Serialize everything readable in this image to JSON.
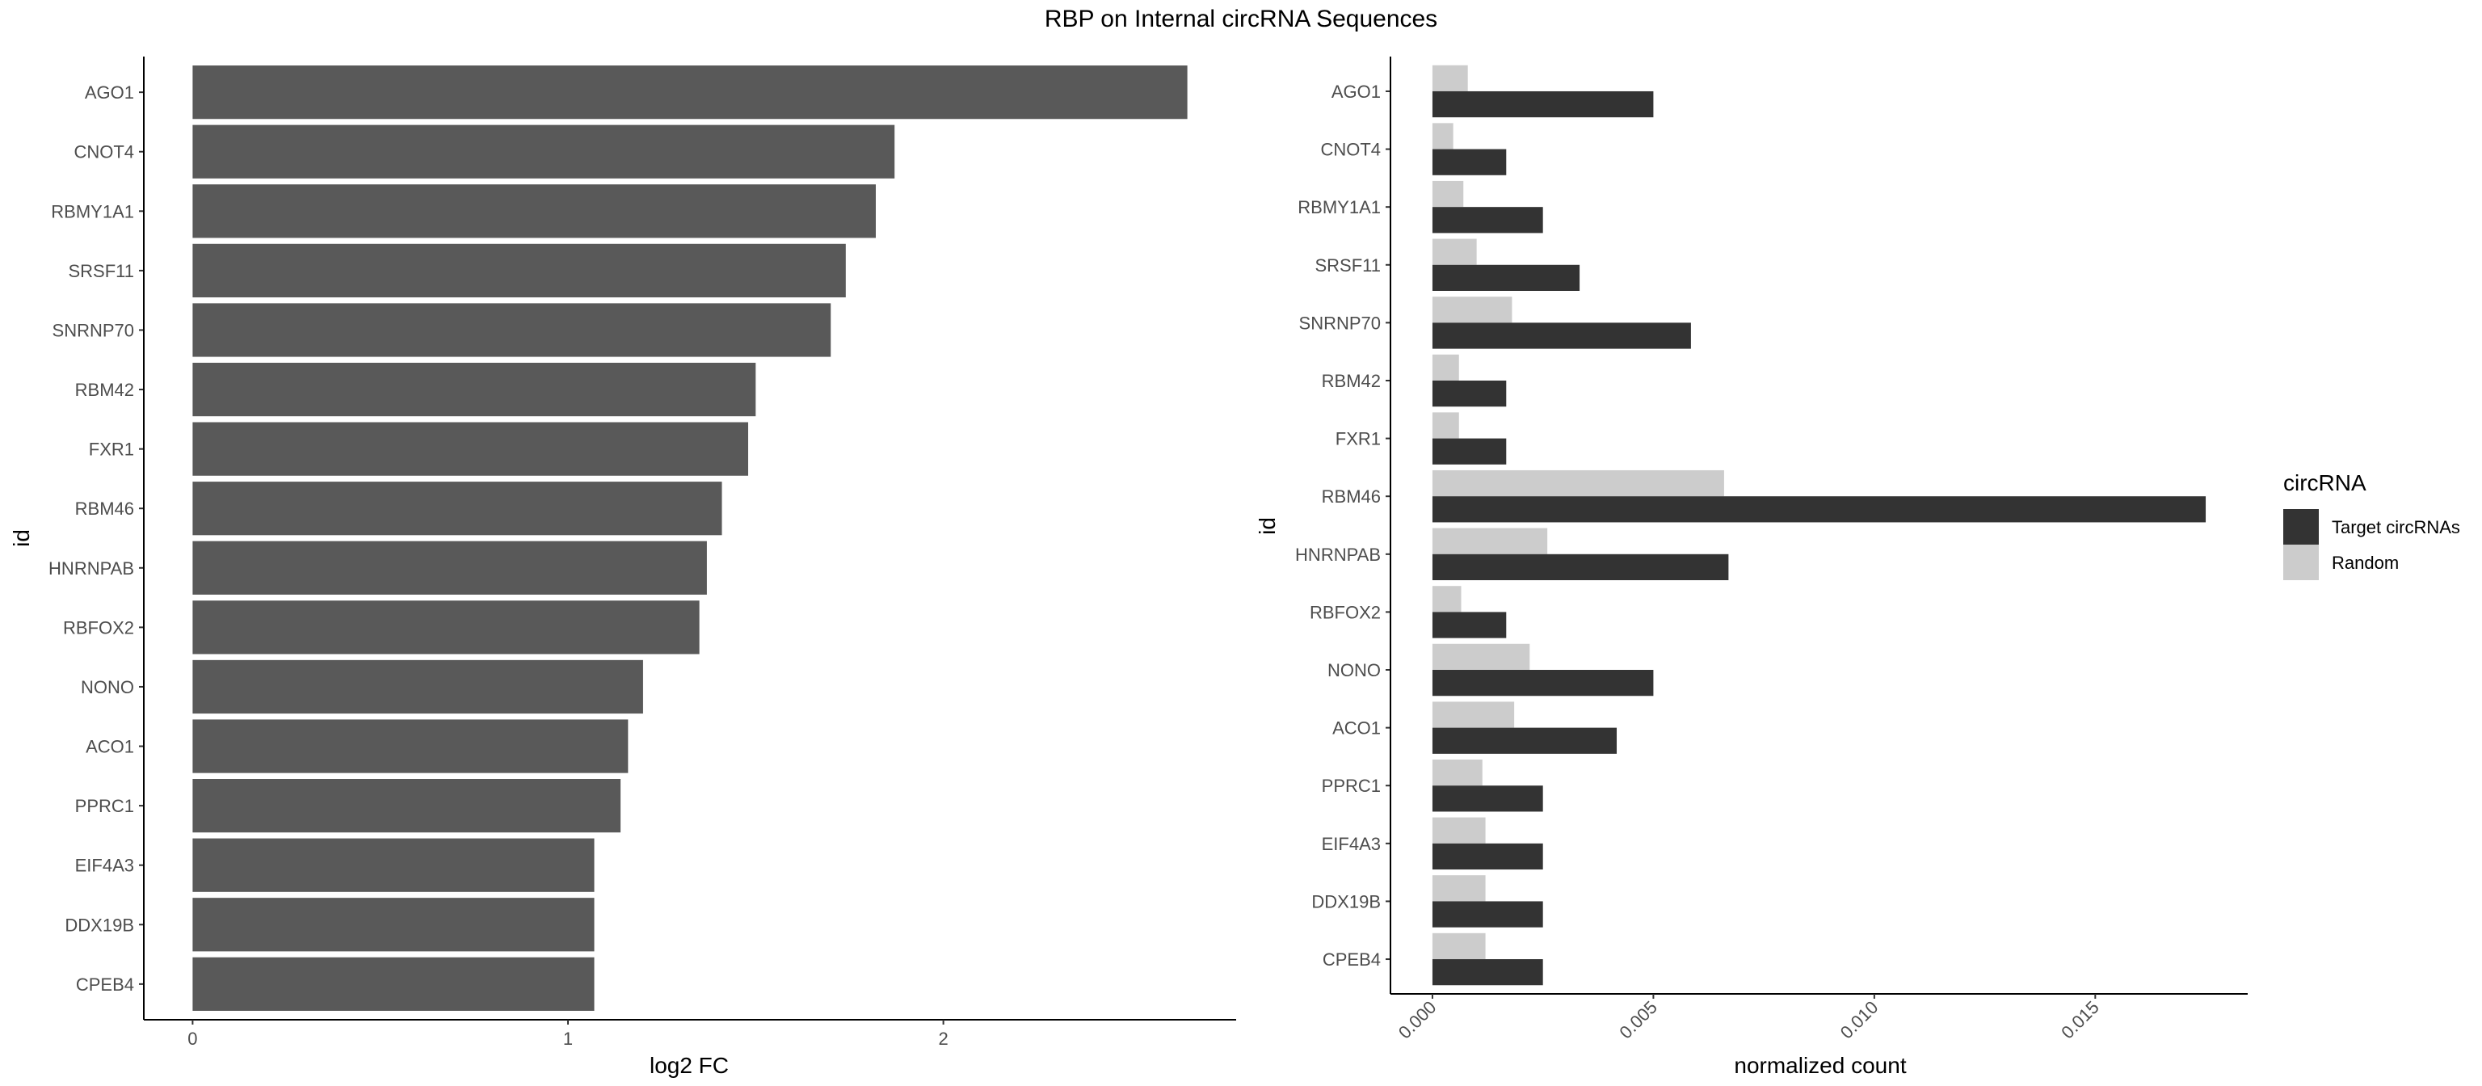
{
  "chart_data": [
    {
      "type": "bar",
      "orientation": "horizontal",
      "title": "RBP on Internal circRNA Sequences",
      "xlabel": "log2 FC",
      "ylabel": "id",
      "xlim": [
        -0.13,
        2.78
      ],
      "xticks": [
        0,
        1,
        2
      ],
      "grid": false,
      "categories": [
        "AGO1",
        "CNOT4",
        "RBMY1A1",
        "SRSF11",
        "SNRNP70",
        "RBM42",
        "FXR1",
        "RBM46",
        "HNRNPAB",
        "RBFOX2",
        "NONO",
        "ACO1",
        "PPRC1",
        "EIF4A3",
        "DDX19B",
        "CPEB4"
      ],
      "values": [
        2.65,
        1.87,
        1.82,
        1.74,
        1.7,
        1.5,
        1.48,
        1.41,
        1.37,
        1.35,
        1.2,
        1.16,
        1.14,
        1.07,
        1.07,
        1.07
      ],
      "colors": {
        "bar": "#595959"
      }
    },
    {
      "type": "bar",
      "orientation": "horizontal",
      "position": "dodge",
      "xlabel": "normalized count",
      "ylabel": "id",
      "xlim": [
        -0.00095,
        0.01845
      ],
      "xticks": [
        0.0,
        0.005,
        0.01,
        0.015
      ],
      "xtick_labels": [
        "0.000",
        "0.005",
        "0.010",
        "0.015"
      ],
      "grid": false,
      "categories": [
        "AGO1",
        "CNOT4",
        "RBMY1A1",
        "SRSF11",
        "SNRNP70",
        "RBM42",
        "FXR1",
        "RBM46",
        "HNRNPAB",
        "RBFOX2",
        "NONO",
        "ACO1",
        "PPRC1",
        "EIF4A3",
        "DDX19B",
        "CPEB4"
      ],
      "series": [
        {
          "name": "Target circRNAs",
          "color": "#333333",
          "values": [
            0.005,
            0.00167,
            0.0025,
            0.00333,
            0.00585,
            0.00167,
            0.00167,
            0.0175,
            0.0067,
            0.00167,
            0.005,
            0.00417,
            0.0025,
            0.0025,
            0.0025,
            0.0025
          ]
        },
        {
          "name": "Random",
          "color": "#cccccc",
          "values": [
            0.0008,
            0.00047,
            0.0007,
            0.001,
            0.0018,
            0.0006,
            0.0006,
            0.0066,
            0.0026,
            0.00065,
            0.0022,
            0.00185,
            0.00113,
            0.0012,
            0.0012,
            0.0012
          ]
        }
      ],
      "legend": {
        "title": "circRNA",
        "position": "right"
      }
    }
  ]
}
